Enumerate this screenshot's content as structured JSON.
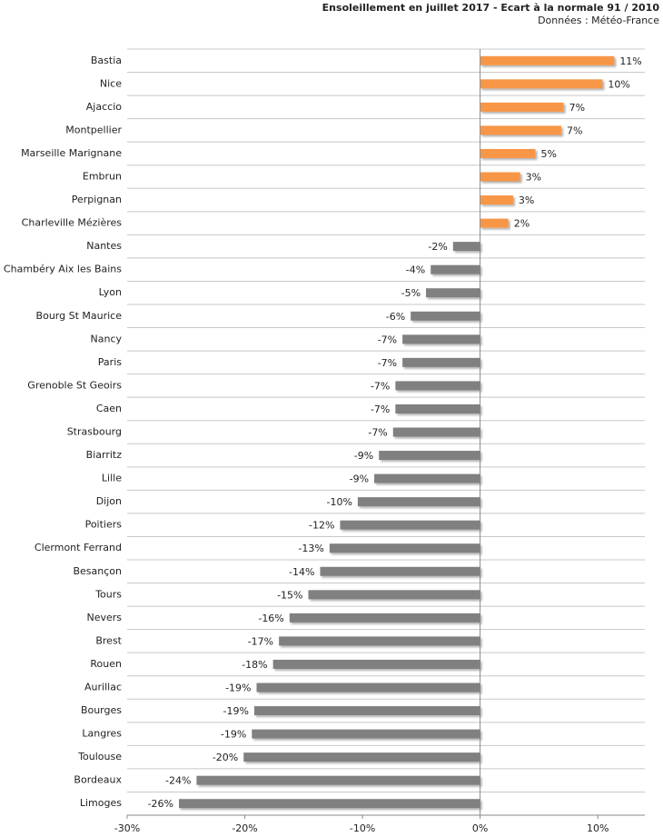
{
  "chart_data": {
    "type": "barh",
    "title": "Ensoleillement en juillet 2017 - Ecart à la normale 91 / 2010",
    "subtitle": "Données : Météo-France",
    "categories": [
      "Bastia",
      "Nice",
      "Ajaccio",
      "Montpellier",
      "Marseille Marignane",
      "Embrun",
      "Perpignan",
      "Charleville Mézières",
      "Nantes",
      "Chambéry Aix les Bains",
      "Lyon",
      "Bourg St Maurice",
      "Nancy",
      "Paris",
      "Grenoble St Geoirs",
      "Caen",
      "Strasbourg",
      "Biarritz",
      "Lille",
      "Dijon",
      "Poitiers",
      "Clermont Ferrand",
      "Besançon",
      "Tours",
      "Nevers",
      "Brest",
      "Rouen",
      "Aurillac",
      "Bourges",
      "Langres",
      "Toulouse",
      "Bordeaux",
      "Limoges"
    ],
    "values": [
      11.4,
      10.4,
      7.1,
      6.9,
      4.7,
      3.4,
      2.8,
      2.4,
      -2.3,
      -4.2,
      -4.6,
      -5.9,
      -6.6,
      -6.6,
      -7.2,
      -7.2,
      -7.4,
      -8.6,
      -9.0,
      -10.4,
      -11.9,
      -12.8,
      -13.6,
      -14.6,
      -16.2,
      -17.1,
      -17.6,
      -19.0,
      -19.2,
      -19.4,
      -20.1,
      -24.1,
      -25.6
    ],
    "value_labels": [
      "11%",
      "10%",
      "7%",
      "7%",
      "5%",
      "3%",
      "3%",
      "2%",
      "-2%",
      "-4%",
      "-5%",
      "-6%",
      "-7%",
      "-7%",
      "-7%",
      "-7%",
      "-7%",
      "-9%",
      "-9%",
      "-10%",
      "-12%",
      "-13%",
      "-14%",
      "-15%",
      "-16%",
      "-17%",
      "-18%",
      "-19%",
      "-19%",
      "-19%",
      "-20%",
      "-24%",
      "-26%"
    ],
    "positive_color": "#f79646",
    "negative_color": "#808080",
    "xlim": [
      -30,
      14
    ],
    "xticks": [
      {
        "value": -30,
        "label": "-30%"
      },
      {
        "value": -20,
        "label": "-20%"
      },
      {
        "value": -10,
        "label": "-10%"
      },
      {
        "value": 0,
        "label": "0%"
      },
      {
        "value": 10,
        "label": "10%"
      }
    ],
    "grid": true
  }
}
